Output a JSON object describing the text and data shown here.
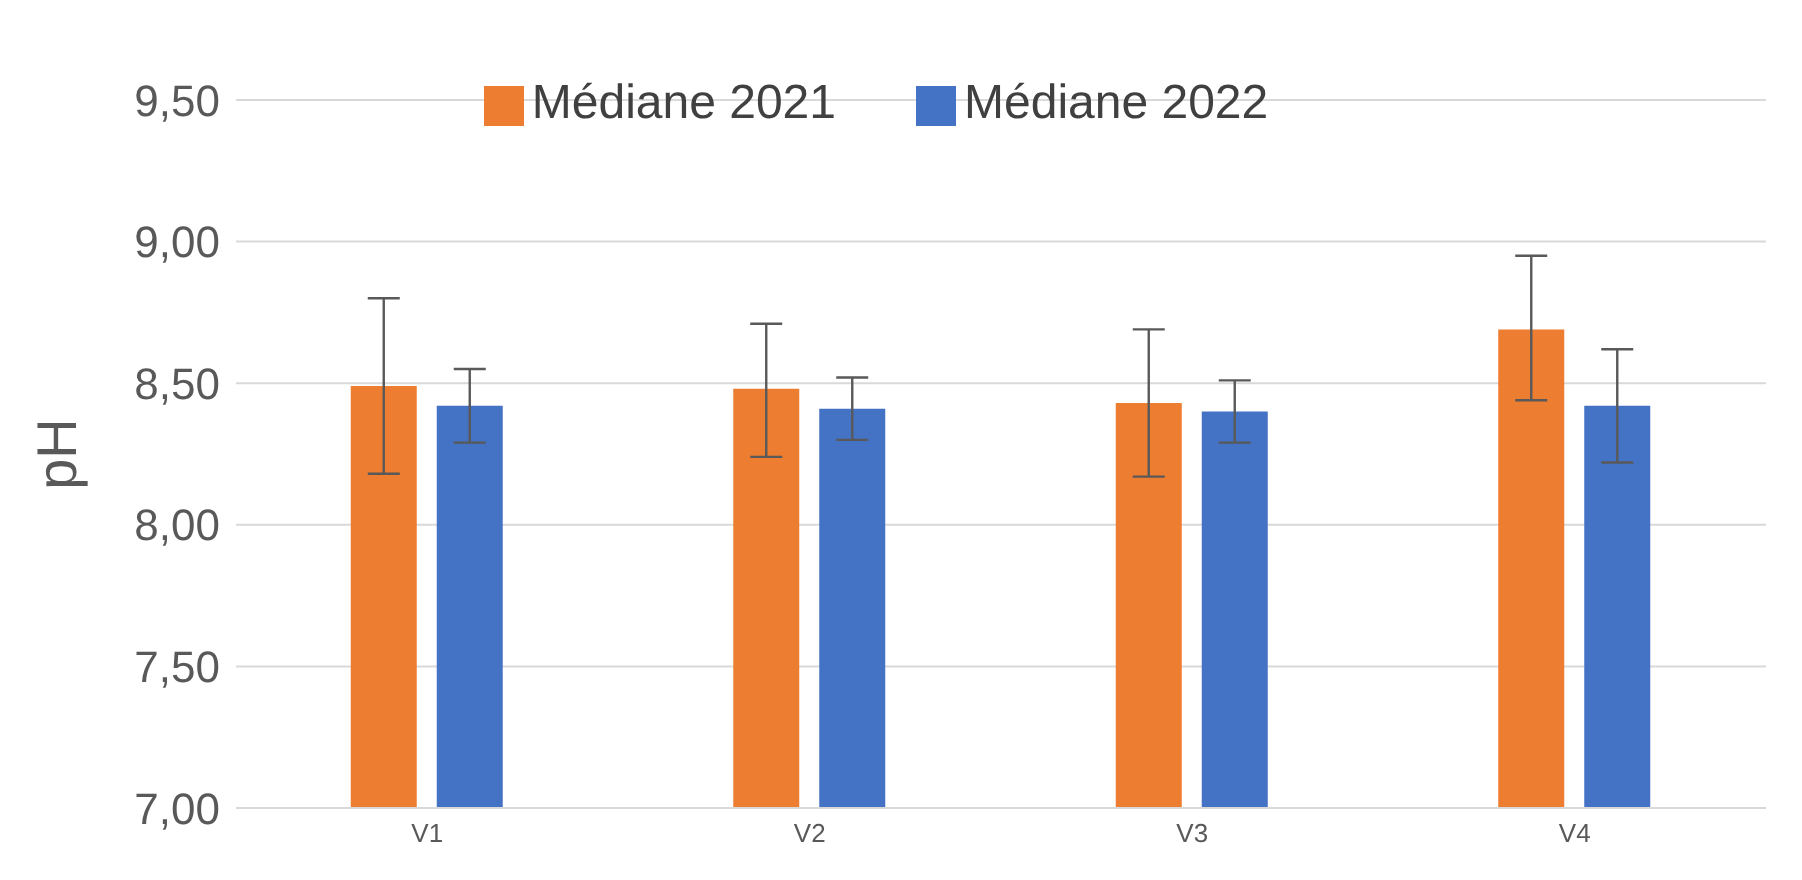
{
  "chart_data": {
    "type": "bar",
    "ylabel": "pH",
    "categories": [
      "V1",
      "V2",
      "V3",
      "V4"
    ],
    "series": [
      {
        "name": "Médiane 2021",
        "color": "#ed7d31",
        "values": [
          8.49,
          8.48,
          8.43,
          8.69
        ],
        "errors": [
          [
            8.18,
            8.8
          ],
          [
            8.24,
            8.71
          ],
          [
            8.17,
            8.69
          ],
          [
            8.44,
            8.95
          ]
        ]
      },
      {
        "name": "Médiane 2022",
        "color": "#4472c4",
        "values": [
          8.42,
          8.41,
          8.4,
          8.42
        ],
        "errors": [
          [
            8.29,
            8.55
          ],
          [
            8.3,
            8.52
          ],
          [
            8.29,
            8.51
          ],
          [
            8.22,
            8.62
          ]
        ]
      }
    ],
    "ylim": [
      7,
      9.5
    ],
    "yticks": [
      {
        "value": 7,
        "label": "7,00"
      },
      {
        "value": 7.5,
        "label": "7,50"
      },
      {
        "value": 8,
        "label": "8,00"
      },
      {
        "value": 8.5,
        "label": "8,50"
      },
      {
        "value": 9,
        "label": "9,00"
      },
      {
        "value": 9.5,
        "label": "9,50"
      }
    ],
    "grid": "y",
    "legend": "top"
  }
}
